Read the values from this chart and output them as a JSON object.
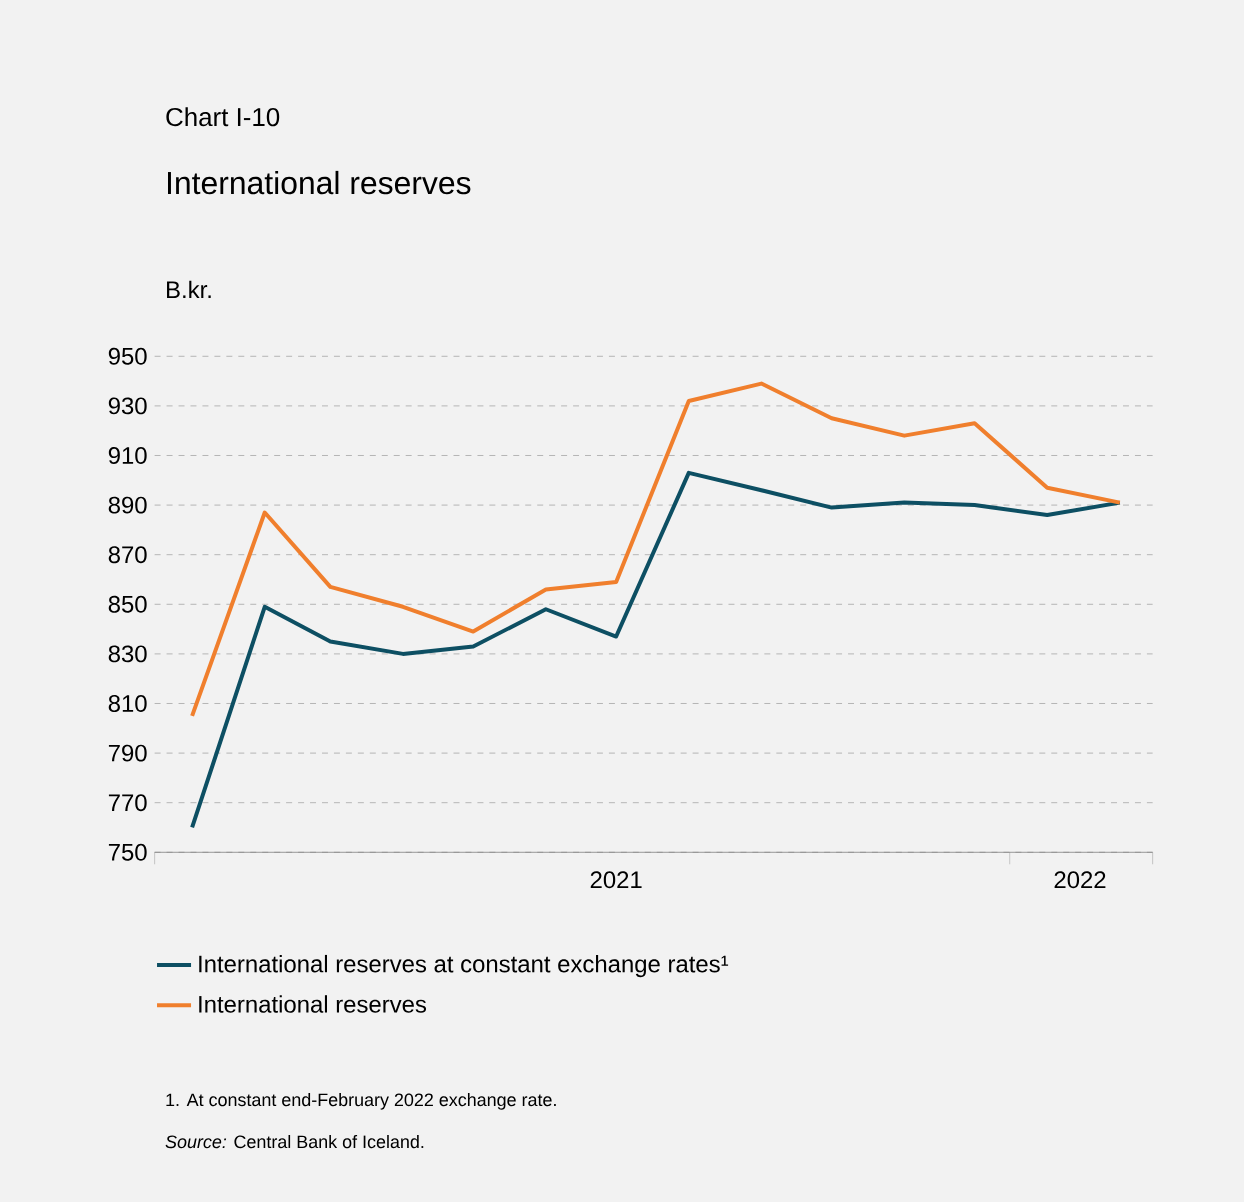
{
  "chart_data": {
    "type": "line",
    "title": "Chart I-10",
    "subtitle": "International reserves",
    "ylabel": "B.kr.",
    "x": [
      "2021-01",
      "2021-02",
      "2021-03",
      "2021-04",
      "2021-05",
      "2021-06",
      "2021-07",
      "2021-08",
      "2021-09",
      "2021-10",
      "2021-11",
      "2021-12",
      "2022-01",
      "2022-02"
    ],
    "series": [
      {
        "name": "International reserves at constant exchange rates¹",
        "color": "#0d4f63",
        "values": [
          760,
          849,
          835,
          830,
          833,
          848,
          837,
          903,
          896,
          889,
          891,
          890,
          886,
          891
        ]
      },
      {
        "name": "International reserves",
        "color": "#f07f2d",
        "values": [
          805,
          887,
          857,
          849,
          839,
          856,
          859,
          932,
          939,
          925,
          918,
          923,
          897,
          891
        ]
      }
    ],
    "xlim": [
      "2020-12-16",
      "2022-02-15"
    ],
    "xticks": [
      {
        "value": "2020-12-16",
        "label": null
      },
      {
        "value": "2021-07-01",
        "label": "2021"
      },
      {
        "value": "2021-12-16",
        "label": null
      },
      {
        "value": "2022-01-15",
        "label": "2022"
      },
      {
        "value": "2022-02-15",
        "label": null
      }
    ],
    "ylim": [
      750,
      950
    ],
    "yticks": [
      750,
      770,
      790,
      810,
      830,
      850,
      870,
      890,
      910,
      930,
      950
    ],
    "grid": "y",
    "legend": "bottom",
    "marker": "none",
    "line_style": "solid",
    "annotations": [
      "1. At constant end-February 2022 exchange rate.",
      "*Source:* Central Bank of Iceland."
    ]
  }
}
